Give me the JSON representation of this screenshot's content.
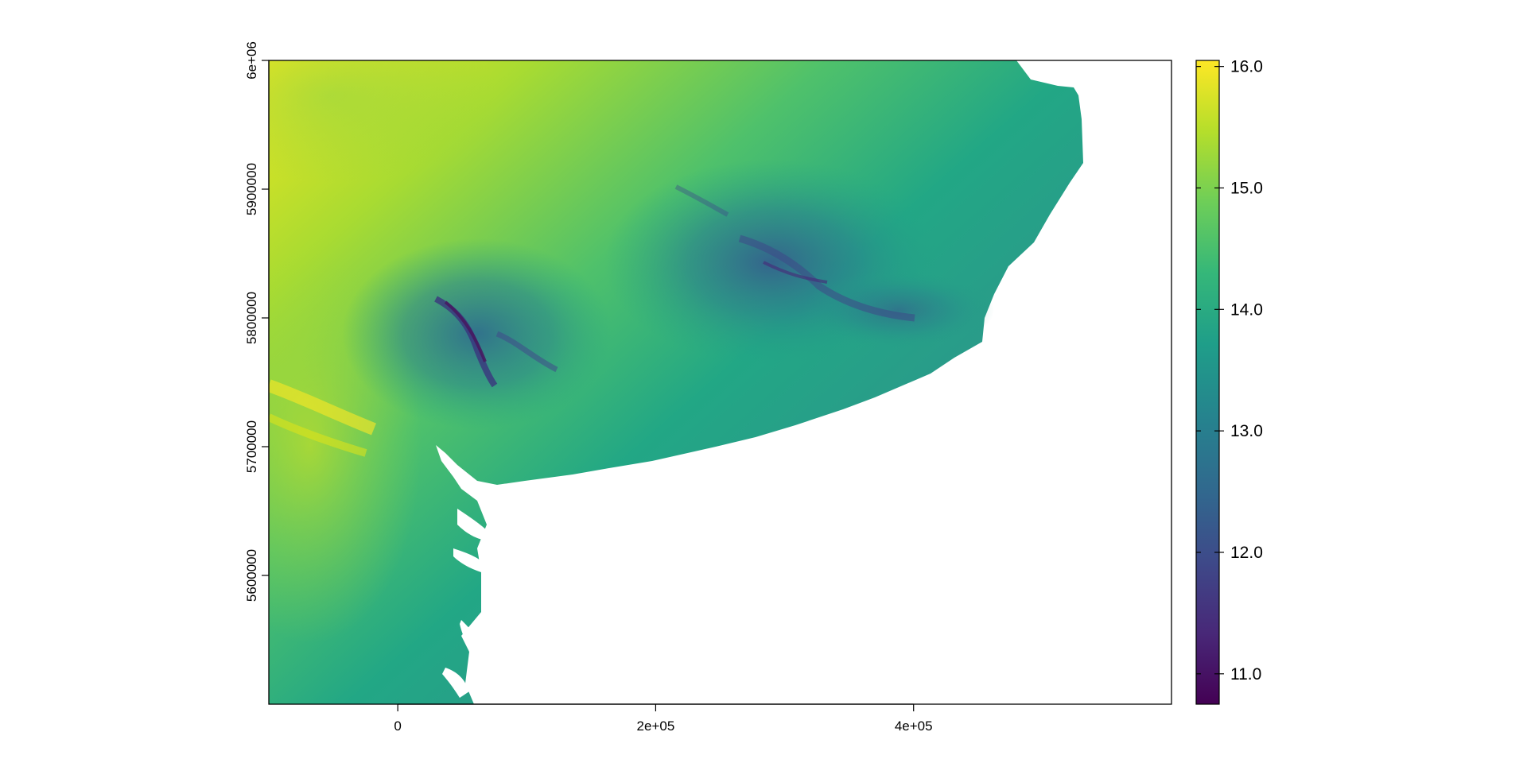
{
  "map": {
    "type": "raster",
    "title": "",
    "x_ticks": [
      {
        "value": 0,
        "label": "0"
      },
      {
        "value": 200000,
        "label": "2e+05"
      },
      {
        "value": 400000,
        "label": "4e+05"
      }
    ],
    "y_ticks": [
      {
        "value": 5600000,
        "label": "5600000"
      },
      {
        "value": 5700000,
        "label": "5700000"
      },
      {
        "value": 5800000,
        "label": "5800000"
      },
      {
        "value": 5900000,
        "label": "5900000"
      },
      {
        "value": 6000000,
        "label": "6e+06"
      }
    ],
    "xlim": [
      -100000,
      600000
    ],
    "ylim": [
      5500000,
      6000000
    ],
    "no_data_color": "#ffffff"
  },
  "legend": {
    "range": [
      10.75,
      16.05
    ],
    "ticks": [
      {
        "value": 11,
        "label": "11.0"
      },
      {
        "value": 12,
        "label": "12.0"
      },
      {
        "value": 13,
        "label": "13.0"
      },
      {
        "value": 14,
        "label": "14.0"
      },
      {
        "value": 15,
        "label": "15.0"
      },
      {
        "value": 16,
        "label": "16.0"
      }
    ],
    "palette": "viridis",
    "colors": [
      "#440154",
      "#482878",
      "#3e4989",
      "#31688e",
      "#26828e",
      "#1f9e89",
      "#35b779",
      "#6ece58",
      "#b5de2b",
      "#fde725"
    ]
  }
}
